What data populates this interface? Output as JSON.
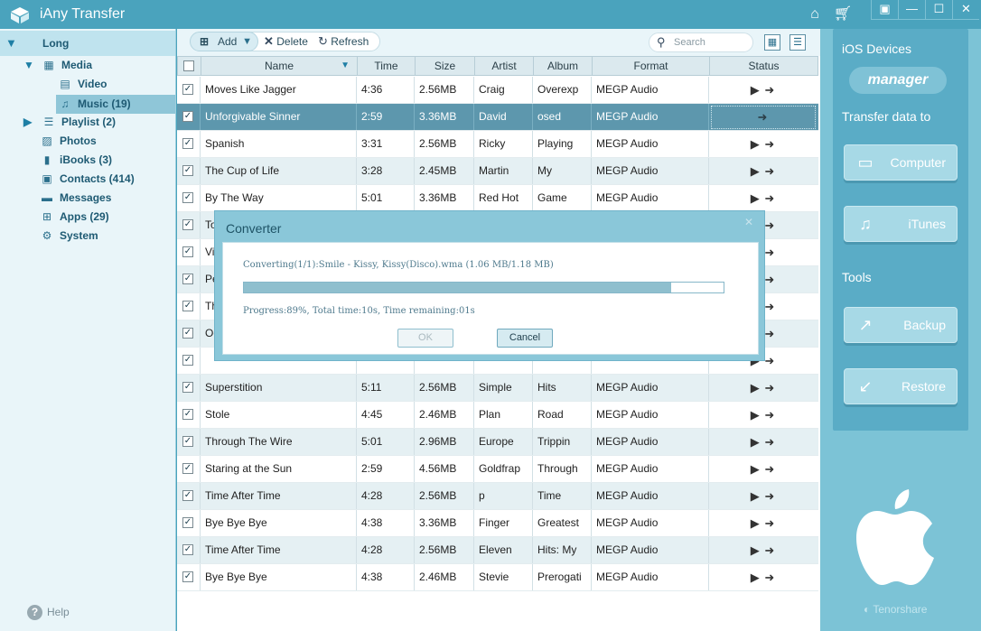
{
  "app": {
    "title": "iAny Transfer"
  },
  "sidebar": {
    "device": "Long",
    "items": [
      {
        "label": "Media",
        "icon": "media-icon"
      },
      {
        "label": "Video",
        "icon": "video-icon"
      },
      {
        "label": "Music (19)",
        "icon": "music-note-icon"
      },
      {
        "label": "Playlist (2)",
        "icon": "playlist-icon"
      },
      {
        "label": "Photos",
        "icon": "photos-icon"
      },
      {
        "label": "iBooks (3)",
        "icon": "book-icon"
      },
      {
        "label": "Contacts (414)",
        "icon": "contacts-icon"
      },
      {
        "label": "Messages",
        "icon": "messages-icon"
      },
      {
        "label": "Apps (29)",
        "icon": "apps-icon"
      },
      {
        "label": "System",
        "icon": "gear-icon"
      }
    ],
    "help": "Help"
  },
  "toolbar": {
    "add": "Add",
    "delete": "Delete",
    "refresh": "Refresh",
    "search_placeholder": "Search"
  },
  "table": {
    "columns": [
      "Name",
      "Time",
      "Size",
      "Artist",
      "Album",
      "Format",
      "Status"
    ],
    "rows": [
      {
        "name": "Moves Like Jagger",
        "time": "4:36",
        "size": "2.56MB",
        "artist": "Craig",
        "album": "Overexp",
        "format": "MEGP Audio"
      },
      {
        "name": "Unforgivable Sinner",
        "time": "2:59",
        "size": "3.36MB",
        "artist": "David",
        "album": "osed",
        "format": "MEGP Audio"
      },
      {
        "name": "Spanish",
        "time": "3:31",
        "size": "2.56MB",
        "artist": "Ricky",
        "album": "Playing",
        "format": "MEGP Audio"
      },
      {
        "name": "The Cup of Life",
        "time": "3:28",
        "size": "2.45MB",
        "artist": "Martin",
        "album": "My",
        "format": "MEGP Audio"
      },
      {
        "name": "By The Way",
        "time": "5:01",
        "size": "3.36MB",
        "artist": "Red Hot",
        "album": "Game",
        "format": "MEGP Audio"
      },
      {
        "name": "Tox",
        "time": "",
        "size": "",
        "artist": "",
        "album": "",
        "format": ""
      },
      {
        "name": "Visi",
        "time": "",
        "size": "",
        "artist": "",
        "album": "",
        "format": ""
      },
      {
        "name": "Per",
        "time": "",
        "size": "",
        "artist": "",
        "album": "",
        "format": ""
      },
      {
        "name": "The",
        "time": "",
        "size": "",
        "artist": "",
        "album": "",
        "format": ""
      },
      {
        "name": "Ooh",
        "time": "",
        "size": "",
        "artist": "",
        "album": "",
        "format": ""
      },
      {
        "name": "",
        "time": "",
        "size": "",
        "artist": "",
        "album": "",
        "format": ""
      },
      {
        "name": "Superstition",
        "time": "5:11",
        "size": "2.56MB",
        "artist": "Simple",
        "album": "Hits",
        "format": "MEGP Audio"
      },
      {
        "name": "Stole",
        "time": "4:45",
        "size": "2.46MB",
        "artist": "Plan",
        "album": "Road",
        "format": "MEGP Audio"
      },
      {
        "name": "Through The Wire",
        "time": "5:01",
        "size": "2.96MB",
        "artist": "Europe",
        "album": "Trippin",
        "format": "MEGP Audio"
      },
      {
        "name": "Staring at the Sun",
        "time": "2:59",
        "size": "4.56MB",
        "artist": "Goldfrap",
        "album": "Through",
        "format": "MEGP Audio"
      },
      {
        "name": "Time After Time",
        "time": "4:28",
        "size": "2.56MB",
        "artist": "p",
        "album": "Time",
        "format": "MEGP Audio"
      },
      {
        "name": "Bye Bye Bye",
        "time": "4:38",
        "size": "3.36MB",
        "artist": "Finger",
        "album": "Greatest",
        "format": "MEGP Audio"
      },
      {
        "name": "Time After Time",
        "time": "4:28",
        "size": "2.56MB",
        "artist": "Eleven",
        "album": "Hits: My",
        "format": "MEGP Audio"
      },
      {
        "name": "Bye Bye Bye",
        "time": "4:38",
        "size": "2.46MB",
        "artist": "Stevie",
        "album": "Prerogati",
        "format": "MEGP Audio"
      }
    ]
  },
  "right_panel": {
    "ios_devices": "iOS Devices",
    "manager": "manager",
    "transfer_to": "Transfer data to",
    "computer": "Computer",
    "itunes": "iTunes",
    "tools": "Tools",
    "backup": "Backup",
    "restore": "Restore",
    "brand": "Tenorshare"
  },
  "dialog": {
    "title": "Converter",
    "status": "Converting(1/1):Smile - Kissy, Kissy(Disco).wma (1.06 MB/1.18 MB)",
    "progress_text": "Progress:89%, Total time:10s, Time remaining:01s",
    "progress": 0.89,
    "ok": "OK",
    "cancel": "Cancel"
  }
}
